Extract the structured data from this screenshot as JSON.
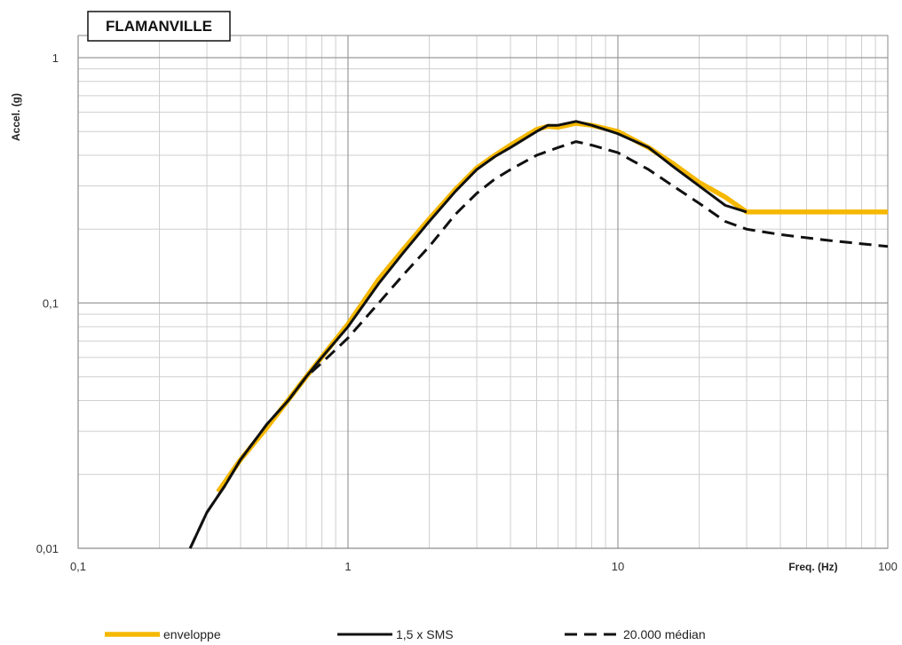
{
  "chart_data": {
    "type": "line",
    "title": "FLAMANVILLE",
    "xlabel": "Freq. (Hz)",
    "ylabel": "Accel. (g)",
    "xscale": "log",
    "yscale": "log",
    "xlim": [
      0.1,
      100
    ],
    "ylim": [
      0.01,
      1.2
    ],
    "grid": true,
    "legend_position": "bottom",
    "x_ticks": [
      {
        "value": 0.1,
        "label": "0,1"
      },
      {
        "value": 1,
        "label": "1"
      },
      {
        "value": 10,
        "label": "10"
      },
      {
        "value": 100,
        "label": "100"
      }
    ],
    "y_ticks": [
      {
        "value": 0.01,
        "label": "0,01"
      },
      {
        "value": 0.1,
        "label": "0,1"
      },
      {
        "value": 1,
        "label": "1"
      }
    ],
    "series": [
      {
        "name": "enveloppe",
        "color": "#f5b800",
        "style": "solid",
        "x": [
          0.33,
          0.4,
          0.5,
          0.7,
          1.0,
          1.3,
          1.6,
          2.0,
          2.5,
          3.0,
          3.5,
          4.0,
          5.0,
          5.5,
          6.0,
          7.0,
          8.0,
          10.0,
          13.0,
          16.0,
          20.0,
          25.0,
          30.0,
          40.0,
          60.0,
          100.0
        ],
        "y": [
          0.017,
          0.023,
          0.031,
          0.05,
          0.082,
          0.125,
          0.165,
          0.22,
          0.29,
          0.355,
          0.4,
          0.44,
          0.51,
          0.525,
          0.52,
          0.54,
          0.53,
          0.5,
          0.43,
          0.37,
          0.31,
          0.27,
          0.235,
          0.235,
          0.235,
          0.235
        ]
      },
      {
        "name": "1,5 x SMS",
        "color": "#111111",
        "style": "solid",
        "x": [
          0.26,
          0.3,
          0.35,
          0.4,
          0.5,
          0.6,
          0.7,
          0.8,
          1.0,
          1.3,
          1.6,
          2.0,
          2.5,
          3.0,
          3.5,
          4.0,
          5.0,
          5.5,
          6.0,
          7.0,
          8.0,
          10.0,
          13.0,
          16.0,
          20.0,
          25.0,
          30.0
        ],
        "y": [
          0.01,
          0.014,
          0.018,
          0.023,
          0.032,
          0.04,
          0.05,
          0.06,
          0.08,
          0.12,
          0.16,
          0.215,
          0.285,
          0.35,
          0.395,
          0.43,
          0.5,
          0.53,
          0.53,
          0.55,
          0.53,
          0.49,
          0.43,
          0.36,
          0.3,
          0.25,
          0.235
        ]
      },
      {
        "name": "20.000 médian",
        "color": "#111111",
        "style": "dashed",
        "x": [
          0.26,
          0.3,
          0.35,
          0.4,
          0.5,
          0.6,
          0.7,
          0.8,
          1.0,
          1.3,
          1.6,
          2.0,
          2.5,
          3.0,
          3.5,
          4.0,
          5.0,
          6.0,
          7.0,
          8.0,
          10.0,
          13.0,
          16.0,
          20.0,
          25.0,
          30.0,
          40.0,
          60.0,
          100.0
        ],
        "y": [
          0.01,
          0.014,
          0.018,
          0.023,
          0.032,
          0.04,
          0.05,
          0.057,
          0.072,
          0.1,
          0.13,
          0.17,
          0.23,
          0.28,
          0.32,
          0.35,
          0.4,
          0.43,
          0.455,
          0.44,
          0.41,
          0.35,
          0.3,
          0.255,
          0.215,
          0.2,
          0.19,
          0.18,
          0.17
        ]
      }
    ]
  }
}
